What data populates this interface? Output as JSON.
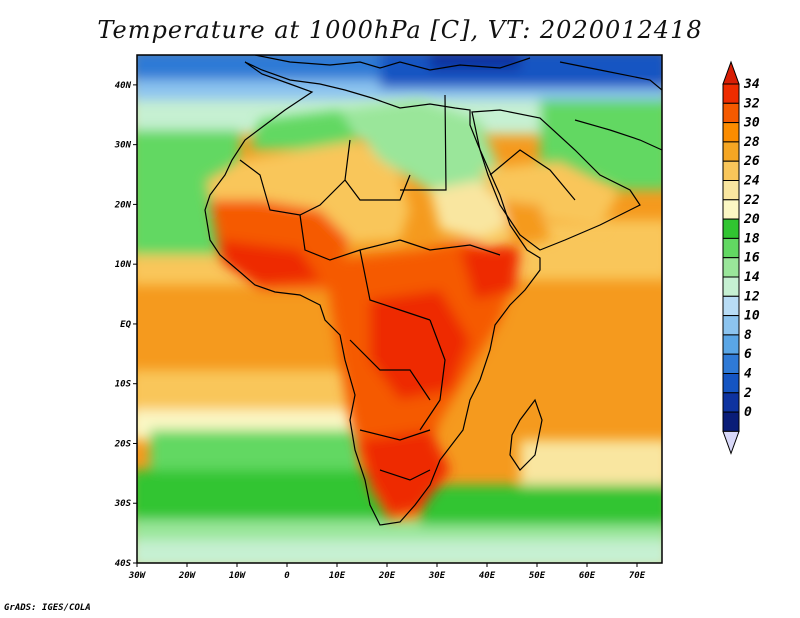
{
  "title": "Temperature at 1000hPa [C], VT: 2020012418",
  "credit": "GrADS: IGES/COLA",
  "map": {
    "lon_range": [
      -30,
      75
    ],
    "lat_range": [
      -40,
      45
    ],
    "lon_ticks": [
      {
        "value": -30,
        "label": "30W"
      },
      {
        "value": -20,
        "label": "20W"
      },
      {
        "value": -10,
        "label": "10W"
      },
      {
        "value": 0,
        "label": "0"
      },
      {
        "value": 10,
        "label": "10E"
      },
      {
        "value": 20,
        "label": "20E"
      },
      {
        "value": 30,
        "label": "30E"
      },
      {
        "value": 40,
        "label": "40E"
      },
      {
        "value": 50,
        "label": "50E"
      },
      {
        "value": 60,
        "label": "60E"
      },
      {
        "value": 70,
        "label": "70E"
      }
    ],
    "lat_ticks": [
      {
        "value": 40,
        "label": "40N"
      },
      {
        "value": 30,
        "label": "30N"
      },
      {
        "value": 20,
        "label": "20N"
      },
      {
        "value": 10,
        "label": "10N"
      },
      {
        "value": 0,
        "label": "EQ"
      },
      {
        "value": -10,
        "label": "10S"
      },
      {
        "value": -20,
        "label": "20S"
      },
      {
        "value": -30,
        "label": "30S"
      },
      {
        "value": -40,
        "label": "40S"
      }
    ]
  },
  "colorbar": {
    "labels": [
      "34",
      "32",
      "30",
      "28",
      "26",
      "24",
      "22",
      "20",
      "18",
      "16",
      "14",
      "12",
      "10",
      "8",
      "6",
      "4",
      "2",
      "0"
    ],
    "colors": [
      "#ee2c00",
      "#f55a00",
      "#fb8c00",
      "#f5a623",
      "#f9c65a",
      "#f9e6a0",
      "#fbf7c4",
      "#31c531",
      "#62d862",
      "#9ae69a",
      "#c6f0d2",
      "#b8dcf5",
      "#8cc4ef",
      "#5aa6e6",
      "#2f7ad6",
      "#1555c2",
      "#0e33a0",
      "#0a1d78"
    ],
    "top_color": "#d81e05",
    "bottom_color": "#d8d8f8"
  }
}
